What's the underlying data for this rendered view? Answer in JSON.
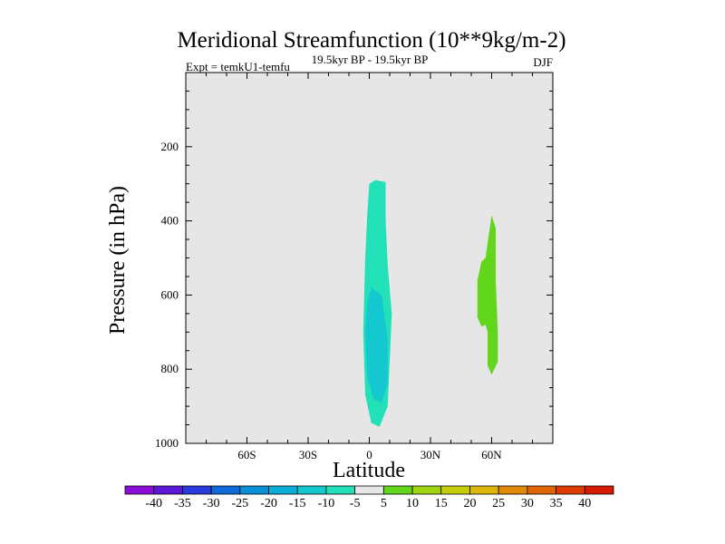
{
  "chart_data": {
    "type": "heatmap",
    "title": "Meridional Streamfunction (10**9kg/m-2)",
    "left_label": "Expt = temkU1-temfu",
    "center_label": "19.5kyr BP - 19.5kyr BP",
    "right_label": "DJF",
    "xlabel": "Latitude",
    "ylabel": "Pressure (in hPa)",
    "xlim": [
      -90,
      90
    ],
    "ylim": [
      1000,
      0
    ],
    "x_ticks": [
      {
        "value": -60,
        "label": "60S"
      },
      {
        "value": -30,
        "label": "30S"
      },
      {
        "value": 0,
        "label": "0"
      },
      {
        "value": 30,
        "label": "30N"
      },
      {
        "value": 60,
        "label": "60N"
      }
    ],
    "y_ticks": [
      {
        "value": 200,
        "label": "200"
      },
      {
        "value": 400,
        "label": "400"
      },
      {
        "value": 600,
        "label": "600"
      },
      {
        "value": 800,
        "label": "800"
      },
      {
        "value": 1000,
        "label": "1000"
      }
    ],
    "background_color": "#e6e6e6",
    "colorbar": {
      "levels": [
        "-40",
        "-35",
        "-30",
        "-25",
        "-20",
        "-15",
        "-10",
        "-5",
        "5",
        "10",
        "15",
        "20",
        "25",
        "30",
        "35",
        "40"
      ],
      "colors": [
        "#8a0ed6",
        "#5a18d6",
        "#2a3adc",
        "#0d6ad8",
        "#0a90d8",
        "#06aed8",
        "#14c8d0",
        "#22e0b8",
        "#e6e6e6",
        "#62d61a",
        "#9ed410",
        "#c6ce0a",
        "#dcb608",
        "#e08a06",
        "#e06404",
        "#e03c02",
        "#d81a02"
      ]
    },
    "regions": [
      {
        "name": "negative -5 to -10 region near equator",
        "value": -7.5,
        "color": "#22e0b8",
        "polygon": [
          [
            3,
            290
          ],
          [
            8,
            295
          ],
          [
            8,
            400
          ],
          [
            9,
            520
          ],
          [
            11,
            650
          ],
          [
            10,
            780
          ],
          [
            9,
            900
          ],
          [
            5,
            955
          ],
          [
            1,
            945
          ],
          [
            -2,
            870
          ],
          [
            -3,
            700
          ],
          [
            -2,
            500
          ],
          [
            -1,
            380
          ],
          [
            0,
            300
          ]
        ]
      },
      {
        "name": "negative -10 to -15 core",
        "value": -12.5,
        "color": "#14c8d0",
        "polygon": [
          [
            1,
            580
          ],
          [
            6,
            600
          ],
          [
            9,
            720
          ],
          [
            9,
            840
          ],
          [
            6,
            890
          ],
          [
            2,
            880
          ],
          [
            -1,
            820
          ],
          [
            -2,
            700
          ],
          [
            -1,
            620
          ]
        ]
      },
      {
        "name": "positive 5 to 10 region near 60N",
        "value": 7.5,
        "color": "#62d61a",
        "polygon": [
          [
            60,
            385
          ],
          [
            62,
            420
          ],
          [
            62,
            560
          ],
          [
            63,
            700
          ],
          [
            63,
            780
          ],
          [
            60,
            815
          ],
          [
            58,
            790
          ],
          [
            58,
            700
          ],
          [
            57,
            680
          ],
          [
            55,
            685
          ],
          [
            53,
            660
          ],
          [
            53,
            560
          ],
          [
            55,
            510
          ],
          [
            57,
            500
          ],
          [
            58,
            460
          ]
        ]
      }
    ]
  }
}
